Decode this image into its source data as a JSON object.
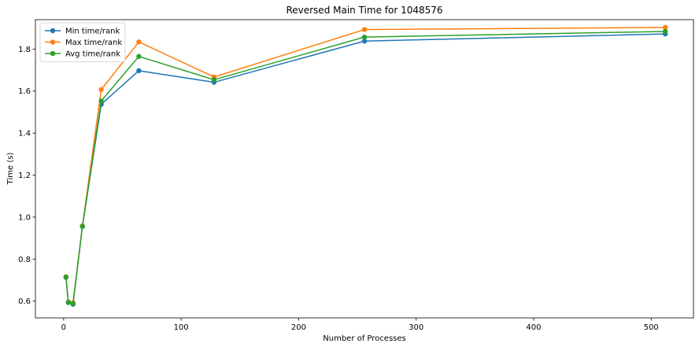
{
  "chart_data": {
    "type": "line",
    "title": "Reversed Main Time for 1048576",
    "xlabel": "Number of Processes",
    "ylabel": "Time (s)",
    "xlim": [
      -24,
      536
    ],
    "ylim": [
      0.52,
      1.94
    ],
    "x_ticks": [
      0,
      100,
      200,
      300,
      400,
      500
    ],
    "y_ticks": [
      0.6,
      0.8,
      1.0,
      1.2,
      1.4,
      1.6,
      1.8
    ],
    "x": [
      2,
      4,
      8,
      16,
      32,
      64,
      128,
      256,
      512
    ],
    "legend_position": "top-left",
    "grid": false,
    "series": [
      {
        "name": "Min time/rank",
        "color": "#1f77b4",
        "values": [
          0.713,
          0.593,
          0.585,
          0.955,
          1.537,
          1.697,
          1.642,
          1.838,
          1.872
        ]
      },
      {
        "name": "Max time/rank",
        "color": "#ff7f0e",
        "values": [
          0.716,
          0.596,
          0.592,
          0.958,
          1.607,
          1.834,
          1.667,
          1.893,
          1.903
        ]
      },
      {
        "name": "Avg time/rank",
        "color": "#2ca02c",
        "values": [
          0.714,
          0.594,
          0.588,
          0.956,
          1.553,
          1.765,
          1.654,
          1.857,
          1.884
        ]
      }
    ]
  }
}
